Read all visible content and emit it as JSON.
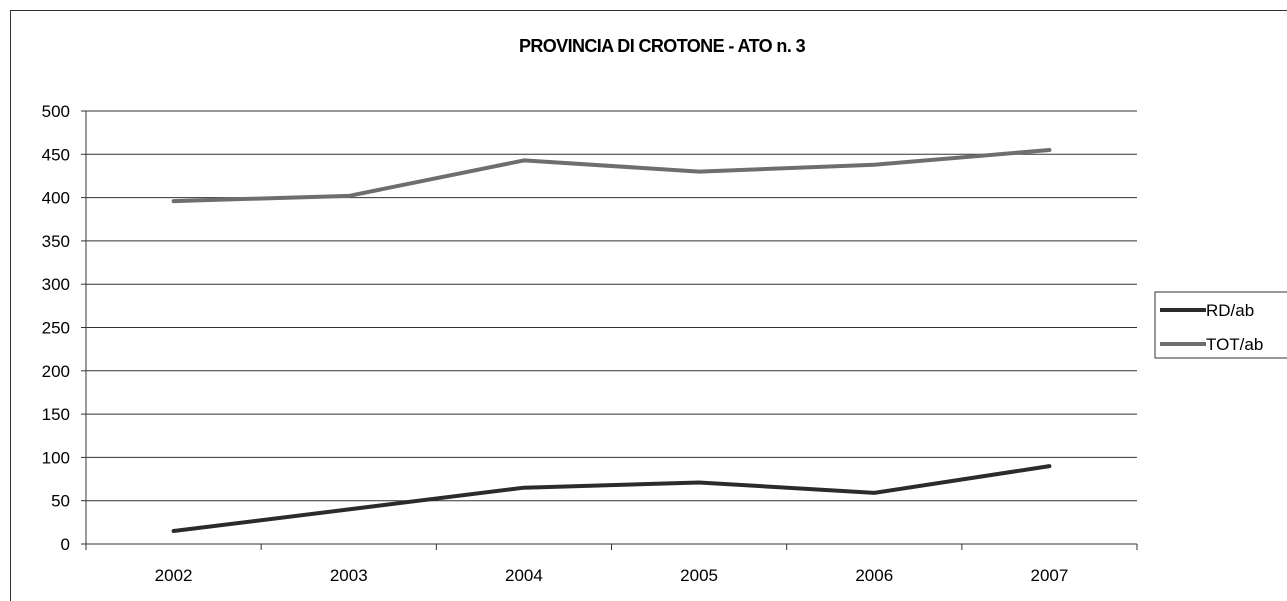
{
  "chart_data": {
    "type": "line",
    "title": "PROVINCIA DI CROTONE - ATO n. 3",
    "categories": [
      "2002",
      "2003",
      "2004",
      "2005",
      "2006",
      "2007"
    ],
    "ylim": [
      0,
      500
    ],
    "yticks": [
      0,
      50,
      100,
      150,
      200,
      250,
      300,
      350,
      400,
      450,
      500
    ],
    "grid": true,
    "legend_position": "right",
    "series": [
      {
        "name": "RD/ab",
        "color": "#2b2b2b",
        "values": [
          15,
          40,
          65,
          71,
          59,
          90
        ]
      },
      {
        "name": "TOT/ab",
        "color": "#6e6e6e",
        "values": [
          396,
          402,
          443,
          430,
          438,
          455
        ]
      }
    ]
  }
}
